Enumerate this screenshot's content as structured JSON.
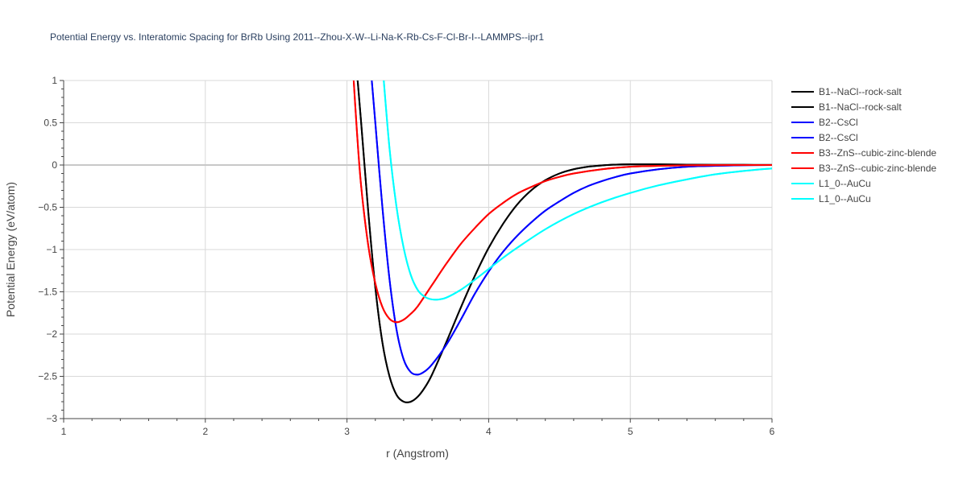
{
  "chart_data": {
    "type": "line",
    "title": "Potential Energy vs. Interatomic Spacing for BrRb Using 2011--Zhou-X-W--Li-Na-K-Rb-Cs-F-Cl-Br-I--LAMMPS--ipr1",
    "xlabel": "r (Angstrom)",
    "ylabel": "Potential Energy (eV/atom)",
    "xlim": [
      1,
      6
    ],
    "ylim": [
      -3,
      1
    ],
    "xticks": [
      1,
      2,
      3,
      4,
      5,
      6
    ],
    "xtick_labels": [
      "1",
      "2",
      "3",
      "4",
      "5",
      "6"
    ],
    "yticks": [
      1,
      0.5,
      0,
      -0.5,
      -1,
      -1.5,
      -2,
      -2.5,
      -3
    ],
    "ytick_labels": [
      "1",
      "0.5",
      "0",
      "−0.5",
      "−1",
      "−1.5",
      "−2",
      "−2.5",
      "−3"
    ],
    "grid": true,
    "legend_position": "right",
    "series": [
      {
        "name": "B1--NaCl--rock-salt",
        "color": "#000000",
        "x": [
          3.05,
          3.1,
          3.15,
          3.2,
          3.25,
          3.3,
          3.35,
          3.4,
          3.45,
          3.5,
          3.55,
          3.6,
          3.7,
          3.8,
          3.9,
          4.0,
          4.1,
          4.2,
          4.3,
          4.4,
          4.5,
          4.6,
          4.7,
          4.8,
          4.9,
          5.0,
          5.2,
          5.4,
          5.6,
          5.8,
          6.0
        ],
        "y": [
          1.5,
          0.5,
          -0.55,
          -1.45,
          -2.1,
          -2.5,
          -2.72,
          -2.8,
          -2.8,
          -2.74,
          -2.63,
          -2.48,
          -2.1,
          -1.7,
          -1.32,
          -0.98,
          -0.7,
          -0.47,
          -0.3,
          -0.18,
          -0.1,
          -0.05,
          -0.02,
          -0.005,
          0.005,
          0.008,
          0.008,
          0.005,
          0.003,
          0.002,
          0.001
        ]
      },
      {
        "name": "B1--NaCl--rock-salt",
        "color": "#000000",
        "x": [
          3.05,
          3.1,
          3.15,
          3.2,
          3.25,
          3.3,
          3.35,
          3.4,
          3.45,
          3.5,
          3.55,
          3.6,
          3.7,
          3.8,
          3.9,
          4.0,
          4.1,
          4.2,
          4.3,
          4.4,
          4.5,
          4.6,
          4.7,
          4.8,
          4.9,
          5.0,
          5.2,
          5.4,
          5.6,
          5.8,
          6.0
        ],
        "y": [
          1.5,
          0.5,
          -0.55,
          -1.45,
          -2.1,
          -2.5,
          -2.72,
          -2.8,
          -2.8,
          -2.74,
          -2.63,
          -2.48,
          -2.1,
          -1.7,
          -1.32,
          -0.98,
          -0.7,
          -0.47,
          -0.3,
          -0.18,
          -0.1,
          -0.05,
          -0.02,
          -0.005,
          0.005,
          0.008,
          0.008,
          0.005,
          0.003,
          0.002,
          0.001
        ]
      },
      {
        "name": "B2--CsCl",
        "color": "#0000ff",
        "x": [
          3.17,
          3.2,
          3.25,
          3.3,
          3.35,
          3.4,
          3.45,
          3.5,
          3.55,
          3.6,
          3.7,
          3.8,
          3.9,
          4.0,
          4.1,
          4.2,
          4.3,
          4.4,
          4.5,
          4.6,
          4.7,
          4.8,
          4.9,
          5.0,
          5.2,
          5.4,
          5.6,
          5.8,
          6.0
        ],
        "y": [
          1.1,
          0.5,
          -0.5,
          -1.35,
          -1.95,
          -2.3,
          -2.45,
          -2.48,
          -2.44,
          -2.36,
          -2.13,
          -1.84,
          -1.53,
          -1.26,
          -1.03,
          -0.84,
          -0.68,
          -0.54,
          -0.43,
          -0.33,
          -0.25,
          -0.19,
          -0.14,
          -0.1,
          -0.05,
          -0.02,
          -0.01,
          -0.002,
          0.0
        ]
      },
      {
        "name": "B2--CsCl",
        "color": "#0000ff",
        "x": [
          3.17,
          3.2,
          3.25,
          3.3,
          3.35,
          3.4,
          3.45,
          3.5,
          3.55,
          3.6,
          3.7,
          3.8,
          3.9,
          4.0,
          4.1,
          4.2,
          4.3,
          4.4,
          4.5,
          4.6,
          4.7,
          4.8,
          4.9,
          5.0,
          5.2,
          5.4,
          5.6,
          5.8,
          6.0
        ],
        "y": [
          1.1,
          0.5,
          -0.5,
          -1.35,
          -1.95,
          -2.3,
          -2.45,
          -2.48,
          -2.44,
          -2.36,
          -2.13,
          -1.84,
          -1.53,
          -1.26,
          -1.03,
          -0.84,
          -0.68,
          -0.54,
          -0.43,
          -0.33,
          -0.25,
          -0.19,
          -0.14,
          -0.1,
          -0.05,
          -0.02,
          -0.01,
          -0.002,
          0.0
        ]
      },
      {
        "name": "B3--ZnS--cubic-zinc-blende",
        "color": "#ff0000",
        "x": [
          3.04,
          3.07,
          3.1,
          3.15,
          3.2,
          3.25,
          3.3,
          3.35,
          3.4,
          3.45,
          3.5,
          3.6,
          3.7,
          3.8,
          3.9,
          4.0,
          4.1,
          4.2,
          4.3,
          4.4,
          4.5,
          4.6,
          4.8,
          5.0,
          5.2,
          5.4,
          5.6,
          5.8,
          6.0
        ],
        "y": [
          1.2,
          0.4,
          -0.25,
          -0.95,
          -1.4,
          -1.68,
          -1.82,
          -1.86,
          -1.83,
          -1.76,
          -1.67,
          -1.42,
          -1.17,
          -0.94,
          -0.75,
          -0.58,
          -0.45,
          -0.34,
          -0.26,
          -0.19,
          -0.14,
          -0.1,
          -0.05,
          -0.02,
          -0.01,
          -0.004,
          -0.001,
          0.0,
          0.0
        ]
      },
      {
        "name": "B3--ZnS--cubic-zinc-blende",
        "color": "#ff0000",
        "x": [
          3.04,
          3.07,
          3.1,
          3.15,
          3.2,
          3.25,
          3.3,
          3.35,
          3.4,
          3.45,
          3.5,
          3.6,
          3.7,
          3.8,
          3.9,
          4.0,
          4.1,
          4.2,
          4.3,
          4.4,
          4.5,
          4.6,
          4.8,
          5.0,
          5.2,
          5.4,
          5.6,
          5.8,
          6.0
        ],
        "y": [
          1.2,
          0.4,
          -0.25,
          -0.95,
          -1.4,
          -1.68,
          -1.82,
          -1.86,
          -1.83,
          -1.76,
          -1.67,
          -1.42,
          -1.17,
          -0.94,
          -0.75,
          -0.58,
          -0.45,
          -0.34,
          -0.26,
          -0.19,
          -0.14,
          -0.1,
          -0.05,
          -0.02,
          -0.01,
          -0.004,
          -0.001,
          0.0,
          0.0
        ]
      },
      {
        "name": "L1_0--AuCu",
        "color": "#00ffff",
        "x": [
          3.25,
          3.3,
          3.35,
          3.4,
          3.45,
          3.5,
          3.55,
          3.6,
          3.65,
          3.7,
          3.8,
          3.9,
          4.0,
          4.1,
          4.2,
          4.4,
          4.6,
          4.8,
          5.0,
          5.2,
          5.4,
          5.6,
          5.8,
          6.0
        ],
        "y": [
          1.2,
          0.2,
          -0.5,
          -0.98,
          -1.3,
          -1.48,
          -1.56,
          -1.59,
          -1.59,
          -1.57,
          -1.48,
          -1.36,
          -1.23,
          -1.1,
          -0.98,
          -0.76,
          -0.58,
          -0.44,
          -0.33,
          -0.24,
          -0.17,
          -0.11,
          -0.07,
          -0.04
        ]
      },
      {
        "name": "L1_0--AuCu",
        "color": "#00ffff",
        "x": [
          3.25,
          3.3,
          3.35,
          3.4,
          3.45,
          3.5,
          3.55,
          3.6,
          3.65,
          3.7,
          3.8,
          3.9,
          4.0,
          4.1,
          4.2,
          4.4,
          4.6,
          4.8,
          5.0,
          5.2,
          5.4,
          5.6,
          5.8,
          6.0
        ],
        "y": [
          1.2,
          0.2,
          -0.5,
          -0.98,
          -1.3,
          -1.48,
          -1.56,
          -1.59,
          -1.59,
          -1.57,
          -1.48,
          -1.36,
          -1.23,
          -1.1,
          -0.98,
          -0.76,
          -0.58,
          -0.44,
          -0.33,
          -0.24,
          -0.17,
          -0.11,
          -0.07,
          -0.04
        ]
      }
    ]
  }
}
